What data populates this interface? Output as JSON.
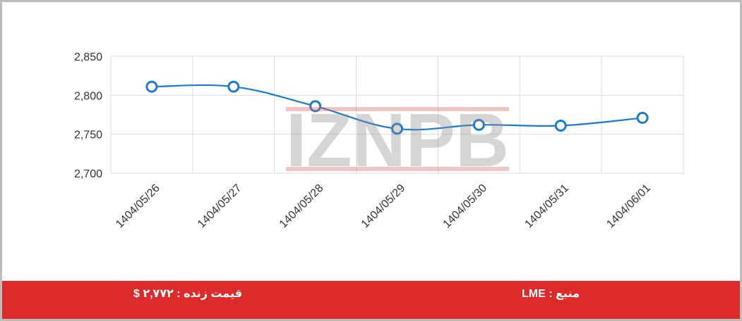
{
  "chart_data": {
    "type": "line",
    "title": "",
    "xlabel": "",
    "ylabel": "",
    "categories": [
      "1404/05/26",
      "1404/05/27",
      "1404/05/28",
      "1404/05/29",
      "1404/05/30",
      "1404/05/31",
      "1404/06/01"
    ],
    "series": [
      {
        "values": [
          2811,
          2811,
          2786,
          2757,
          2762,
          2761,
          2771
        ]
      }
    ],
    "ylim": [
      2700,
      2850
    ],
    "yticks": [
      2700,
      2750,
      2800,
      2850
    ],
    "ytick_labels": [
      "2,700",
      "2,750",
      "2,800",
      "2,850"
    ],
    "grid": true,
    "smooth": true,
    "line_color": "#1a7bd1",
    "grid_color": "#dcdcdc"
  },
  "watermark": {
    "text_gray": "I PB",
    "text_red": "ZN",
    "text_full": "IZNPB"
  },
  "footer": {
    "live_price": "قیمت زنده : ۲,۷۷۲ $",
    "source": "منبع : LME",
    "background_color": "#dd2a2a"
  }
}
